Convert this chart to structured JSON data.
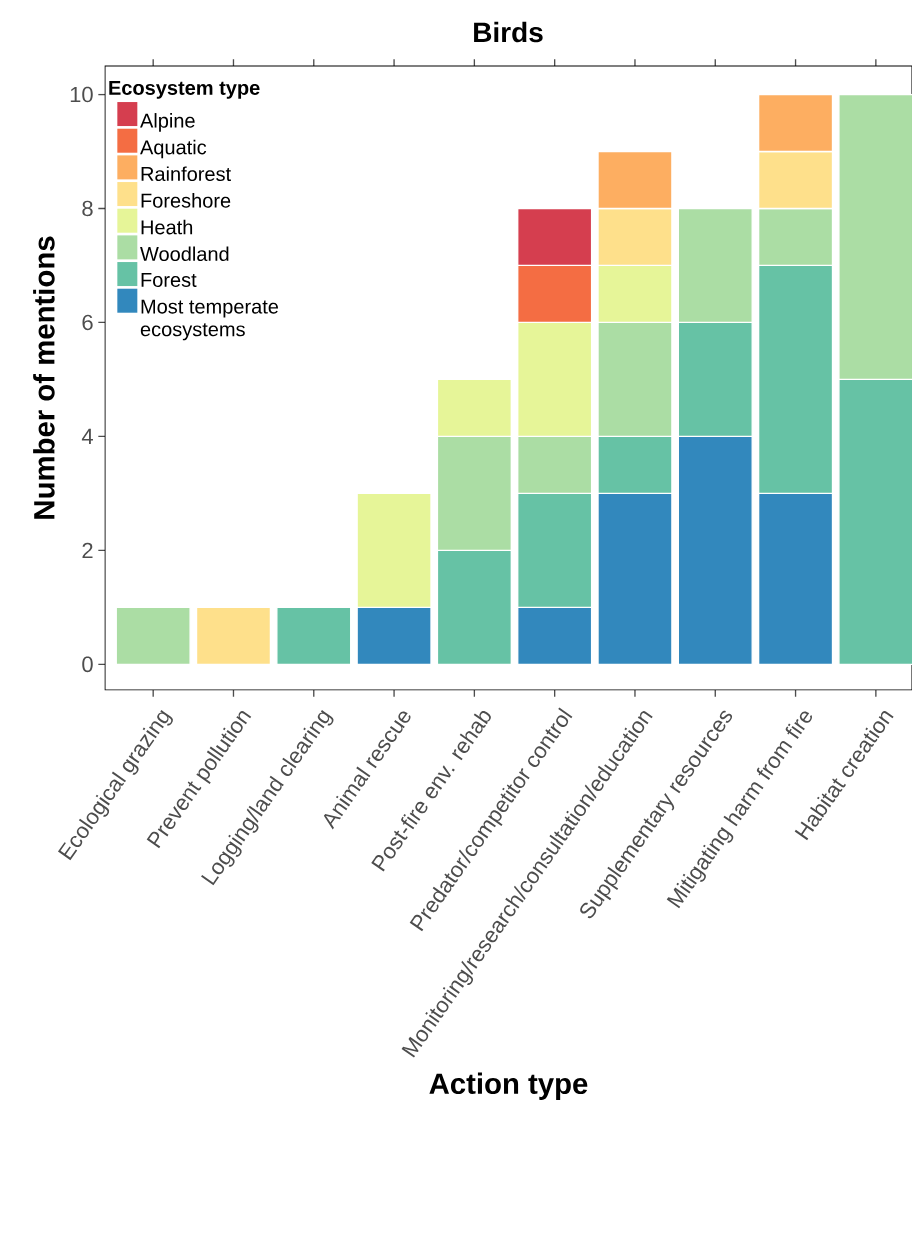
{
  "chart_data": {
    "type": "bar",
    "stacked": true,
    "title": "Birds",
    "xlabel": "Action type",
    "ylabel": "Number of mentions",
    "legend_title": "Ecosystem type",
    "legend": "top left",
    "grid": false,
    "categories": [
      "Ecological grazing",
      "Prevent pollution",
      "Logging/land clearing",
      "Animal rescue",
      "Post-fire env. rehab",
      "Predator/competitor control",
      "Monitoring/research/consultation/education",
      "Supplementary resources",
      "Mitigating harm from fire",
      "Habitat creation"
    ],
    "ylim": [
      -0.45,
      10.5
    ],
    "yticks": [
      0,
      2,
      4,
      6,
      8,
      10
    ],
    "series": [
      {
        "name": "Most temperate ecosystems",
        "color": "#3288bd",
        "values": [
          null,
          null,
          null,
          1,
          null,
          1,
          3,
          4,
          3,
          null
        ]
      },
      {
        "name": "Forest",
        "color": "#66c2a5",
        "values": [
          null,
          null,
          1,
          null,
          2,
          2,
          1,
          2,
          4,
          5
        ]
      },
      {
        "name": "Woodland",
        "color": "#abdda4",
        "values": [
          1,
          null,
          null,
          null,
          2,
          1,
          2,
          2,
          1,
          5
        ]
      },
      {
        "name": "Heath",
        "color": "#e6f598",
        "values": [
          null,
          null,
          null,
          2,
          1,
          2,
          1,
          null,
          null,
          null
        ]
      },
      {
        "name": "Foreshore",
        "color": "#fee08b",
        "values": [
          null,
          1,
          null,
          null,
          null,
          null,
          1,
          null,
          1,
          null
        ]
      },
      {
        "name": "Rainforest",
        "color": "#fdae61",
        "values": [
          null,
          null,
          null,
          null,
          null,
          null,
          1,
          null,
          1,
          null
        ]
      },
      {
        "name": "Aquatic",
        "color": "#f46d43",
        "values": [
          null,
          null,
          null,
          null,
          null,
          1,
          null,
          null,
          null,
          null
        ]
      },
      {
        "name": "Alpine",
        "color": "#d53e4f",
        "values": [
          null,
          null,
          null,
          null,
          null,
          1,
          null,
          null,
          null,
          null
        ]
      }
    ]
  }
}
